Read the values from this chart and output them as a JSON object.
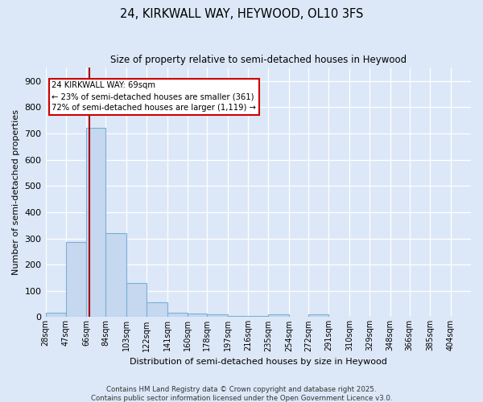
{
  "title": "24, KIRKWALL WAY, HEYWOOD, OL10 3FS",
  "subtitle": "Size of property relative to semi-detached houses in Heywood",
  "xlabel": "Distribution of semi-detached houses by size in Heywood",
  "ylabel": "Number of semi-detached properties",
  "bin_labels": [
    "28sqm",
    "47sqm",
    "66sqm",
    "84sqm",
    "103sqm",
    "122sqm",
    "141sqm",
    "160sqm",
    "178sqm",
    "197sqm",
    "216sqm",
    "235sqm",
    "254sqm",
    "272sqm",
    "291sqm",
    "310sqm",
    "329sqm",
    "348sqm",
    "366sqm",
    "385sqm",
    "404sqm"
  ],
  "bar_heights": [
    18,
    285,
    720,
    320,
    130,
    55,
    15,
    12,
    10,
    3,
    3,
    10,
    0,
    10,
    0,
    0,
    0,
    0,
    0,
    0,
    0
  ],
  "bar_color": "#c5d8f0",
  "bar_edge_color": "#7bafd4",
  "background_color": "#dce8f8",
  "grid_color": "#ffffff",
  "property_line_x": 2,
  "annotation_title": "24 KIRKWALL WAY: 69sqm",
  "annotation_line1": "← 23% of semi-detached houses are smaller (361)",
  "annotation_line2": "72% of semi-detached houses are larger (1,119) →",
  "annotation_box_color": "#ffffff",
  "annotation_border_color": "#cc0000",
  "vline_color": "#aa0000",
  "footer_line1": "Contains HM Land Registry data © Crown copyright and database right 2025.",
  "footer_line2": "Contains public sector information licensed under the Open Government Licence v3.0.",
  "ylim": [
    0,
    950
  ],
  "bin_edges": [
    28,
    47,
    66,
    84,
    103,
    122,
    141,
    160,
    178,
    197,
    216,
    235,
    254,
    272,
    291,
    310,
    329,
    348,
    366,
    385,
    404,
    423
  ]
}
